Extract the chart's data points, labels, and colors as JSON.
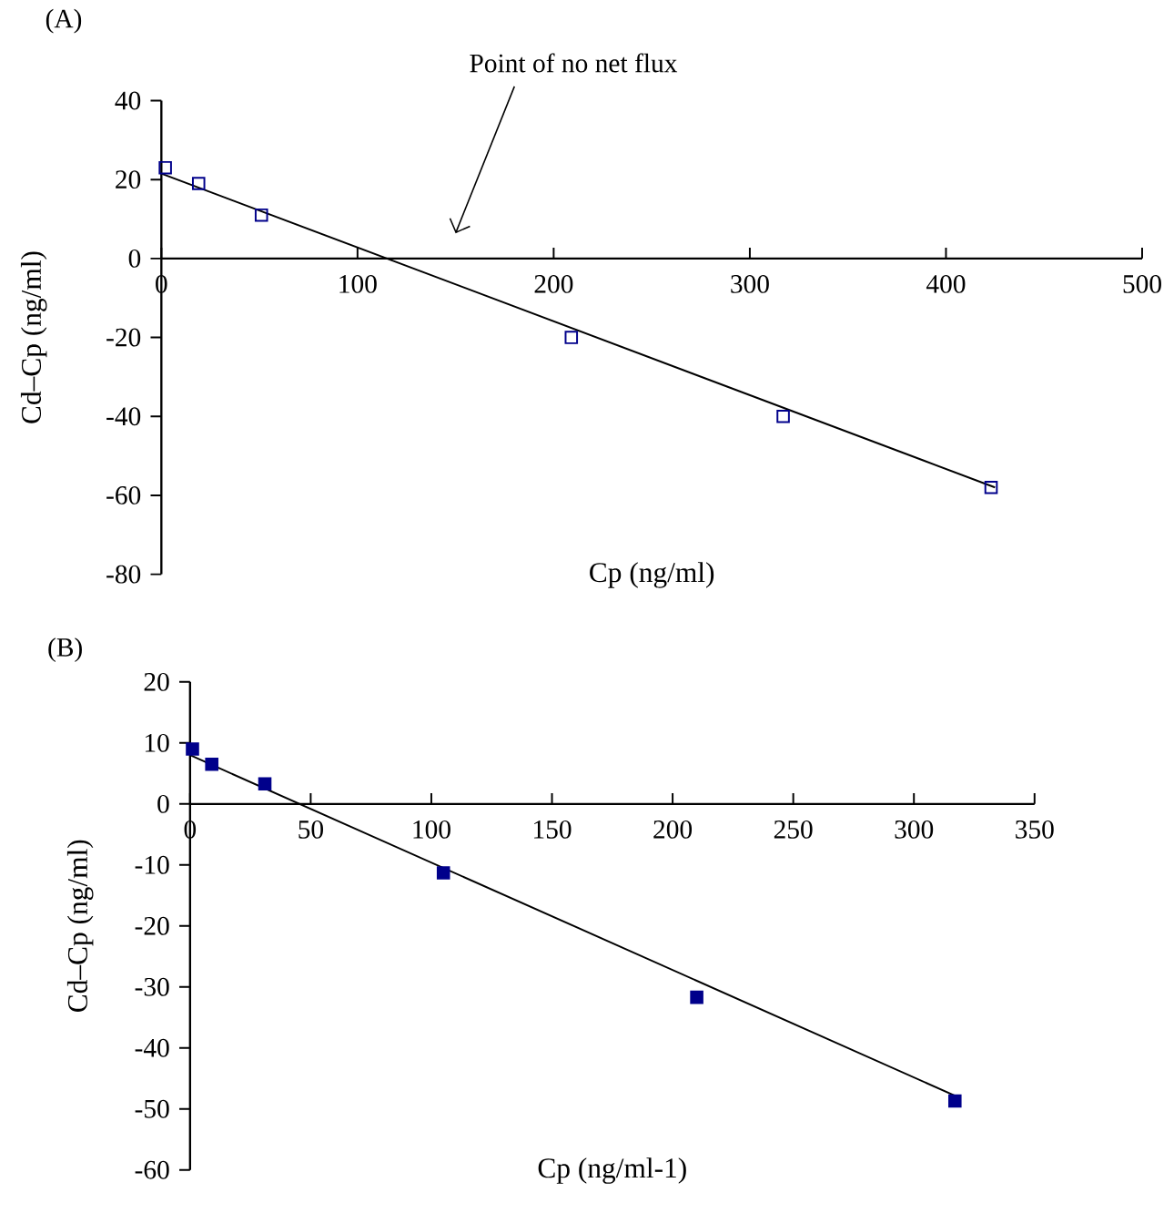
{
  "chart_data": [
    {
      "type": "scatter",
      "title": "(A)",
      "xlabel": "Cp (ng/ml)",
      "ylabel": "Cd–Cp (ng/ml)",
      "marker": "square",
      "xlim": [
        0,
        500
      ],
      "ylim": [
        -80,
        40
      ],
      "xticks": [
        0,
        100,
        200,
        300,
        400,
        500
      ],
      "yticks": [
        -80,
        -60,
        -40,
        -20,
        0,
        20,
        40
      ],
      "annotations": [
        "Point of no net flux"
      ],
      "series": [
        {
          "color": "#00008b",
          "x": [
            2,
            19,
            51,
            209,
            317,
            423
          ],
          "values": [
            23,
            19,
            11,
            -20,
            -40,
            -58
          ]
        },
        {
          "type": "line",
          "color": "#000000",
          "marker": "none",
          "x": [
            0,
            425
          ],
          "values": [
            21.5,
            -58
          ]
        }
      ]
    },
    {
      "type": "scatter",
      "title": "(B)",
      "xlabel": "Cp (ng/ml-1)",
      "ylabel": "Cd–Cp (ng/ml)",
      "marker": "square",
      "xlim": [
        0,
        350
      ],
      "ylim": [
        -60,
        20
      ],
      "xticks": [
        0,
        50,
        100,
        150,
        200,
        250,
        300,
        350
      ],
      "yticks": [
        -60,
        -50,
        -40,
        -30,
        -20,
        -10,
        0,
        10,
        20
      ],
      "series": [
        {
          "color": "#00008b",
          "x": [
            1,
            9,
            31,
            105,
            210,
            317
          ],
          "values": [
            9,
            6.5,
            3.3,
            -11.3,
            -31.7,
            -48.7
          ]
        },
        {
          "type": "line",
          "color": "#000000",
          "marker": "none",
          "x": [
            0,
            318
          ],
          "values": [
            8,
            -48
          ]
        }
      ]
    }
  ]
}
